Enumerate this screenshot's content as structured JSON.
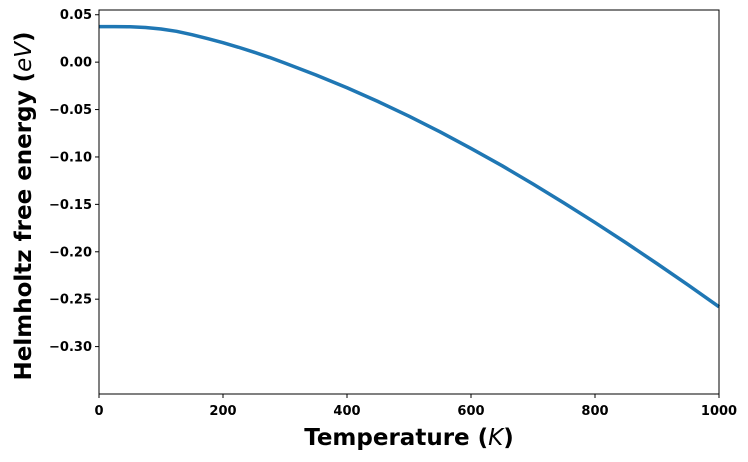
{
  "chart_data": {
    "type": "line",
    "title": "",
    "xlabel": "Temperature ($K$)",
    "xlabel_parts": {
      "prefix": "Temperature (",
      "math": "K",
      "suffix": ")"
    },
    "ylabel": "Helmholtz free energy ($eV$)",
    "ylabel_parts": {
      "prefix": "Helmholtz free energy (",
      "math": "eV",
      "suffix": ")"
    },
    "xlim": [
      0,
      1000
    ],
    "ylim": [
      -0.35,
      0.055
    ],
    "xticks": [
      0,
      200,
      400,
      600,
      800,
      1000
    ],
    "xtick_labels": [
      "0",
      "200",
      "400",
      "600",
      "800",
      "1000"
    ],
    "yticks": [
      0.05,
      0.0,
      -0.05,
      -0.1,
      -0.15,
      -0.2,
      -0.25,
      -0.3
    ],
    "ytick_labels": [
      "0.05",
      "0.00",
      "−0.05",
      "−0.10",
      "−0.15",
      "−0.20",
      "−0.25",
      "−0.30"
    ],
    "grid": false,
    "legend": "none",
    "line_color": "#1f77b4",
    "series": [
      {
        "x": [
          0,
          25,
          50,
          75,
          100,
          125,
          150,
          175,
          200,
          225,
          250,
          275,
          300,
          350,
          400,
          450,
          500,
          550,
          600,
          650,
          700,
          750,
          800,
          850,
          900,
          950,
          1000
        ],
        "y": [
          0.0375,
          0.0375,
          0.0373,
          0.0366,
          0.035,
          0.0325,
          0.029,
          0.0249,
          0.0205,
          0.0157,
          0.0105,
          0.005,
          -0.001,
          -0.0135,
          -0.027,
          -0.0415,
          -0.057,
          -0.0735,
          -0.091,
          -0.1092,
          -0.1285,
          -0.1485,
          -0.1692,
          -0.1905,
          -0.2125,
          -0.235,
          -0.258
        ]
      }
    ]
  }
}
